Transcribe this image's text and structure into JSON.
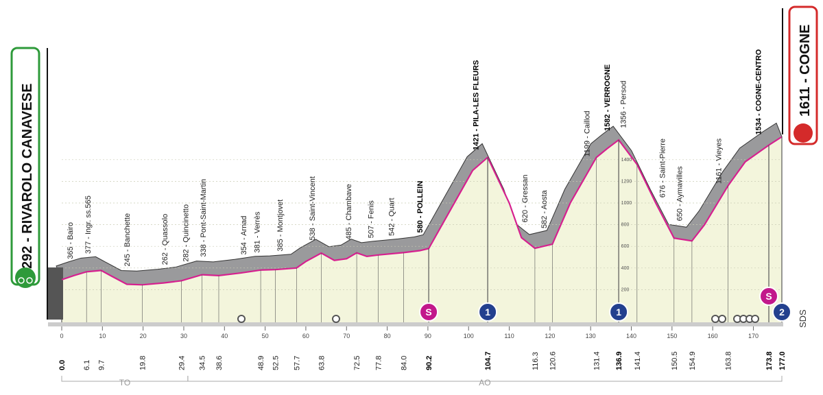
{
  "chart_data": {
    "type": "profile",
    "start": "292 - RIVAROLO CANAVESE",
    "finish": "1611 - COGNE",
    "xlim": [
      0,
      177
    ],
    "xticks": [
      0,
      10,
      20,
      30,
      40,
      50,
      60,
      70,
      80,
      90,
      100,
      110,
      120,
      130,
      140,
      150,
      160,
      170
    ],
    "yticks": [
      200,
      400,
      600,
      800,
      1000,
      1200,
      1400
    ],
    "profile": {
      "km": [
        0,
        3,
        6.1,
        9.7,
        12,
        16,
        19.8,
        25,
        29.4,
        34.5,
        38.6,
        44,
        48.9,
        52.5,
        57.7,
        60,
        63.8,
        67,
        70,
        72.5,
        75,
        77.8,
        84,
        88,
        90.2,
        95,
        101,
        104.7,
        110,
        113,
        116.3,
        120.6,
        125,
        131.4,
        134,
        136.9,
        141.4,
        146,
        150.5,
        154.9,
        158,
        163.8,
        168,
        173.8,
        177
      ],
      "alt": [
        292,
        330,
        365,
        377,
        330,
        250,
        245,
        262,
        282,
        338,
        330,
        354,
        381,
        385,
        400,
        460,
        538,
        470,
        485,
        540,
        507,
        520,
        542,
        560,
        580,
        900,
        1300,
        1421,
        1000,
        680,
        582,
        620,
        1000,
        1420,
        1500,
        1582,
        1356,
        1000,
        676,
        650,
        800,
        1161,
        1380,
        1534,
        1611
      ],
      "color": "#d6208f",
      "fill": "#f3f5dc"
    },
    "places": [
      {
        "label": "365 - Bairo",
        "km": 2
      },
      {
        "label": "377 - Ingr. ss.565",
        "km": 6.4
      },
      {
        "label": "245 - Banchette",
        "km": 16
      },
      {
        "label": "262 - Quassolo",
        "km": 25.3
      },
      {
        "label": "282 - Quincinetto",
        "km": 30.4
      },
      {
        "label": "338 - Pont-Saint-Martin",
        "km": 34.7
      },
      {
        "label": "354 - Arnad",
        "km": 44.7
      },
      {
        "label": "381 - Verrès",
        "km": 48
      },
      {
        "label": "385 - Montjovet",
        "km": 53.6
      },
      {
        "label": "538 - Saint-Vincent",
        "km": 61.5
      },
      {
        "label": "485 - Chambave",
        "km": 70.5
      },
      {
        "label": "507 - Fenis",
        "km": 75.9
      },
      {
        "label": "542 - Quart",
        "km": 81
      },
      {
        "label": "580 - POLLEIN",
        "km": 88,
        "bold": true
      },
      {
        "label": "1421 - PILA-LES FLEURS",
        "km": 101.7,
        "bold": true
      },
      {
        "label": "620 - Gressan",
        "km": 113.8
      },
      {
        "label": "582 - Aosta",
        "km": 118.5
      },
      {
        "label": "1199 - Caillod",
        "km": 129
      },
      {
        "label": "1582 - VERROGNE",
        "km": 134,
        "bold": true
      },
      {
        "label": "1356 - Persod",
        "km": 138
      },
      {
        "label": "676 - Saint-Pierre",
        "km": 147.6
      },
      {
        "label": "650 - Aymavilles",
        "km": 151.8
      },
      {
        "label": "1161 - Vieyes",
        "km": 161.4
      },
      {
        "label": "1534 - COGNE-CENTRO",
        "km": 171.2,
        "bold": true
      }
    ],
    "km_labels": [
      {
        "value": 0,
        "label": "0.0",
        "bold": true
      },
      {
        "value": 6.1
      },
      {
        "value": 9.7
      },
      {
        "value": 19.8
      },
      {
        "value": 29.4
      },
      {
        "value": 34.5
      },
      {
        "value": 38.6
      },
      {
        "value": 48.9
      },
      {
        "value": 52.5
      },
      {
        "value": 57.7
      },
      {
        "value": 63.8
      },
      {
        "value": 72.5
      },
      {
        "value": 77.8
      },
      {
        "value": 84,
        "label": "84.0"
      },
      {
        "value": 90.2,
        "bold": true
      },
      {
        "value": 104.7,
        "bold": true
      },
      {
        "value": 116.3
      },
      {
        "value": 120.6
      },
      {
        "value": 131.4
      },
      {
        "value": 136.9,
        "bold": true
      },
      {
        "value": 141.4
      },
      {
        "value": 150.5
      },
      {
        "value": 154.9
      },
      {
        "value": 163.8
      },
      {
        "value": 173.8,
        "bold": true
      },
      {
        "value": 177,
        "label": "177.0",
        "bold": true
      }
    ],
    "markers": [
      {
        "kind": "sprint",
        "label": "S",
        "km": 90.2
      },
      {
        "kind": "kom",
        "label": "1",
        "km": 104.7
      },
      {
        "kind": "kom",
        "label": "1",
        "km": 136.9
      },
      {
        "kind": "sprint",
        "label": "S",
        "km": 173.8
      },
      {
        "kind": "kom",
        "label": "2",
        "km": 177
      }
    ],
    "marker_colors": {
      "sprint": "#c2188b",
      "kom": "#23408e"
    },
    "sds": "SDS",
    "regions": [
      {
        "label": "TO",
        "from": 0,
        "to": 31
      },
      {
        "label": "AO",
        "from": 31,
        "to": 177
      }
    ]
  }
}
